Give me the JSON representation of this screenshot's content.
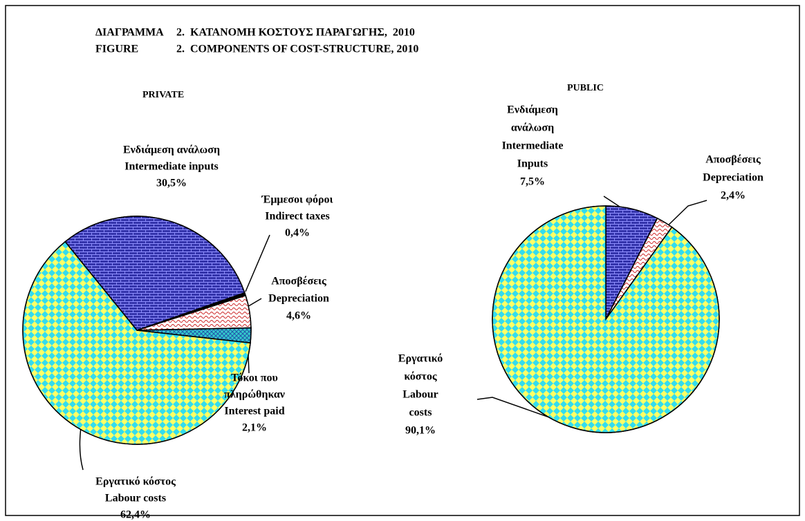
{
  "header": {
    "title": [
      [
        "ΔΙΑΓΡΑΜΜΑ",
        "2.  ΚΑΤΑΝΟΜΗ ΚΟΣΤΟΥΣ ΠΑΡΑΓΩΓΗΣ,  2010"
      ],
      [
        "FIGURE",
        "2.  COMPONENTS OF COST-STRUCTURE, 2010"
      ]
    ]
  },
  "chart_data": [
    {
      "type": "pie",
      "title": "PRIVATE",
      "categories": [
        [
          "Ενδιάμεση ανάλωση",
          "Intermediate inputs"
        ],
        [
          "Έμμεσοι φόροι",
          "Indirect taxes"
        ],
        [
          "Αποσβέσεις",
          "Depreciation"
        ],
        [
          "Τόκοι που",
          "πληρώθηκαν",
          "Interest paid"
        ],
        [
          "Εργατικό κόστος",
          "Labour costs"
        ]
      ],
      "values": [
        30.5,
        0.4,
        4.6,
        2.1,
        62.4
      ],
      "value_labels": [
        "30,5%",
        "0,4%",
        "4,6%",
        "2,1%",
        "62,4%"
      ],
      "colors": [
        "#3333aa",
        "#000000",
        "#ffffff",
        "#33cccc",
        "#ffff66"
      ],
      "patterns": [
        "brick",
        "solid",
        "wave",
        "hatch",
        "checker"
      ]
    },
    {
      "type": "pie",
      "title": "PUBLIC",
      "categories": [
        [
          "Ενδιάμεση",
          "ανάλωση",
          "Intermediate",
          "Inputs"
        ],
        [
          "Αποσβέσεις",
          "Depreciation"
        ],
        [
          "Εργατικό",
          "κόστος",
          "Labour",
          "costs"
        ]
      ],
      "values": [
        7.5,
        2.4,
        90.1
      ],
      "value_labels": [
        "7,5%",
        "2,4%",
        "90,1%"
      ],
      "colors": [
        "#3333aa",
        "#ffffff",
        "#ffff66"
      ],
      "patterns": [
        "brick",
        "wave",
        "checker"
      ]
    }
  ]
}
